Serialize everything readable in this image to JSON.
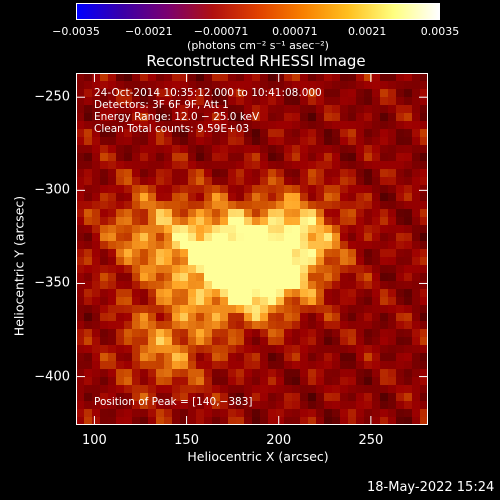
{
  "chart_data": {
    "type": "heatmap",
    "title": "Reconstructed RHESSI Image",
    "xlabel": "Heliocentric X (arcsec)",
    "ylabel": "Heliocentric Y (arcsec)",
    "xlim": [
      90,
      281
    ],
    "ylim": [
      -426,
      -237
    ],
    "x_ticks": [
      {
        "value": 100,
        "label": "100"
      },
      {
        "value": 150,
        "label": "150"
      },
      {
        "value": 200,
        "label": "200"
      },
      {
        "value": 250,
        "label": "250"
      }
    ],
    "y_ticks": [
      {
        "value": -250,
        "label": "−250"
      },
      {
        "value": -300,
        "label": "−300"
      },
      {
        "value": -350,
        "label": "−350"
      },
      {
        "value": -400,
        "label": "−400"
      }
    ],
    "colorbar": {
      "min": -0.0035,
      "max": 0.0035,
      "ticks": [
        {
          "value": -0.0035,
          "label": "−0.0035"
        },
        {
          "value": -0.0021,
          "label": "−0.0021"
        },
        {
          "value": -0.00071,
          "label": "−0.00071"
        },
        {
          "value": 0.00071,
          "label": "0.00071"
        },
        {
          "value": 0.0021,
          "label": "0.0021"
        },
        {
          "value": 0.0035,
          "label": "0.0035"
        }
      ],
      "units": "(photons cm⁻² s⁻¹ asec⁻²)",
      "colormap": [
        "#0000ff",
        "#3a00a8",
        "#7a0070",
        "#b01010",
        "#e04000",
        "#f88000",
        "#ffc020",
        "#ffff80",
        "#ffffff"
      ]
    },
    "info": {
      "time_range": "24-Oct-2014 10:35:12.000 to 10:41:08.000",
      "detectors": "Detectors: 3F 6F 9F, Att 1",
      "energy_range": "Energy Range: 12.0 − 25.0 keV",
      "method_counts": "Clean     Total counts: 9.59E+03",
      "peak": "Position of Peak = [140,−383]"
    },
    "peak_position": [
      140,
      -383
    ],
    "sources": [
      {
        "x": 180,
        "y": -345,
        "intensity": 1.0
      },
      {
        "x": 200,
        "y": -338,
        "intensity": 0.9
      },
      {
        "x": 160,
        "y": -330,
        "intensity": 0.75
      },
      {
        "x": 125,
        "y": -323,
        "intensity": 0.6
      },
      {
        "x": 140,
        "y": -383,
        "intensity": 0.7
      },
      {
        "x": 215,
        "y": -320,
        "intensity": 0.55
      }
    ]
  },
  "footer": {
    "date": "18-May-2022 15:24"
  }
}
